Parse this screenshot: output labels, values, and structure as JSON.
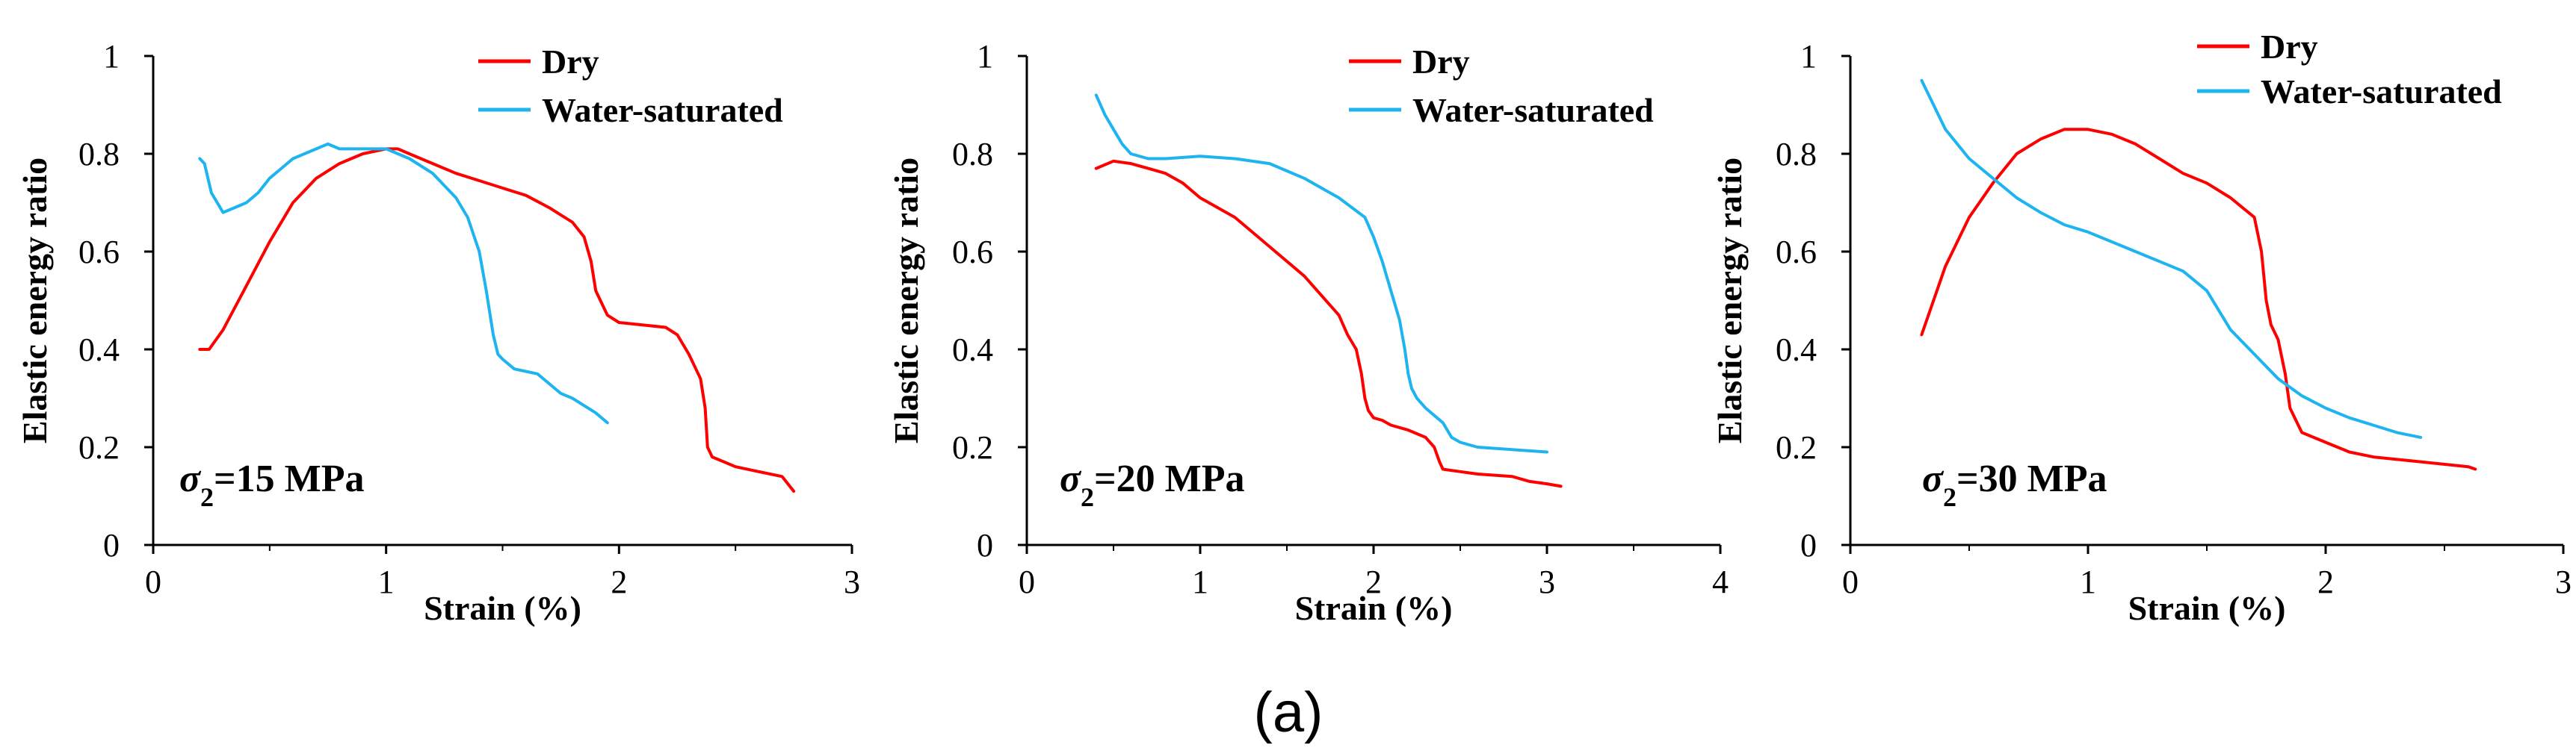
{
  "caption": "(a)",
  "colors": {
    "dry": "#ff0000",
    "water_saturated": "#1eb4f0"
  },
  "chart_data": [
    {
      "type": "line",
      "annotation": {
        "symbol": "σ",
        "subscript": "2",
        "text": "=15 MPa"
      },
      "xlabel": "Strain (%)",
      "ylabel": "Elastic energy ratio",
      "xlim": [
        0,
        3
      ],
      "ylim": [
        0,
        1
      ],
      "xticks": [
        "0",
        "1",
        "2",
        "3"
      ],
      "yticks": [
        "0",
        "0.2",
        "0.4",
        "0.6",
        "0.8",
        "1"
      ],
      "legend_position": "top-center",
      "series": [
        {
          "name": "Dry",
          "color": "#ff0000",
          "x": [
            0.2,
            0.24,
            0.3,
            0.4,
            0.5,
            0.6,
            0.7,
            0.8,
            0.9,
            1.0,
            1.05,
            1.1,
            1.2,
            1.3,
            1.4,
            1.5,
            1.6,
            1.7,
            1.75,
            1.8,
            1.85,
            1.88,
            1.9,
            1.92,
            1.95,
            2.0,
            2.1,
            2.2,
            2.25,
            2.3,
            2.35,
            2.37,
            2.38,
            2.4,
            2.45,
            2.5,
            2.6,
            2.7,
            2.75
          ],
          "y": [
            0.4,
            0.4,
            0.44,
            0.53,
            0.62,
            0.7,
            0.75,
            0.78,
            0.8,
            0.81,
            0.81,
            0.8,
            0.78,
            0.76,
            0.745,
            0.73,
            0.715,
            0.69,
            0.675,
            0.66,
            0.63,
            0.58,
            0.52,
            0.5,
            0.47,
            0.455,
            0.45,
            0.445,
            0.43,
            0.39,
            0.34,
            0.28,
            0.2,
            0.18,
            0.17,
            0.16,
            0.15,
            0.14,
            0.11
          ]
        },
        {
          "name": "Water-saturated",
          "color": "#1eb4f0",
          "x": [
            0.2,
            0.22,
            0.25,
            0.3,
            0.35,
            0.4,
            0.45,
            0.5,
            0.6,
            0.7,
            0.75,
            0.8,
            0.9,
            1.0,
            1.1,
            1.2,
            1.3,
            1.35,
            1.4,
            1.43,
            1.46,
            1.48,
            1.5,
            1.55,
            1.6,
            1.65,
            1.7,
            1.75,
            1.8,
            1.9,
            1.95
          ],
          "y": [
            0.79,
            0.78,
            0.72,
            0.68,
            0.69,
            0.7,
            0.72,
            0.75,
            0.79,
            0.81,
            0.82,
            0.81,
            0.81,
            0.81,
            0.79,
            0.76,
            0.71,
            0.67,
            0.6,
            0.52,
            0.43,
            0.39,
            0.38,
            0.36,
            0.355,
            0.35,
            0.33,
            0.31,
            0.3,
            0.27,
            0.25
          ]
        }
      ]
    },
    {
      "type": "line",
      "annotation": {
        "symbol": "σ",
        "subscript": "2",
        "text": "=20 MPa"
      },
      "xlabel": "Strain (%)",
      "ylabel": "Elastic energy ratio",
      "xlim": [
        0,
        4
      ],
      "ylim": [
        0,
        1
      ],
      "xticks": [
        "0",
        "1",
        "2",
        "3",
        "4"
      ],
      "yticks": [
        "0",
        "0.2",
        "0.4",
        "0.6",
        "0.8",
        "1"
      ],
      "legend_position": "top-center",
      "series": [
        {
          "name": "Dry",
          "color": "#ff0000",
          "x": [
            0.4,
            0.5,
            0.6,
            0.7,
            0.8,
            0.9,
            1.0,
            1.2,
            1.4,
            1.6,
            1.7,
            1.8,
            1.85,
            1.9,
            1.93,
            1.95,
            1.97,
            2.0,
            2.05,
            2.1,
            2.2,
            2.3,
            2.35,
            2.38,
            2.4,
            2.5,
            2.6,
            2.8,
            2.9,
            3.0,
            3.08
          ],
          "y": [
            0.77,
            0.785,
            0.78,
            0.77,
            0.76,
            0.74,
            0.71,
            0.67,
            0.61,
            0.55,
            0.51,
            0.47,
            0.43,
            0.4,
            0.35,
            0.3,
            0.275,
            0.26,
            0.255,
            0.245,
            0.235,
            0.22,
            0.2,
            0.17,
            0.155,
            0.15,
            0.145,
            0.14,
            0.13,
            0.125,
            0.12
          ]
        },
        {
          "name": "Water-saturated",
          "color": "#1eb4f0",
          "x": [
            0.4,
            0.45,
            0.5,
            0.55,
            0.6,
            0.7,
            0.8,
            1.0,
            1.2,
            1.4,
            1.6,
            1.8,
            1.95,
            2.0,
            2.05,
            2.1,
            2.15,
            2.18,
            2.2,
            2.22,
            2.25,
            2.3,
            2.4,
            2.45,
            2.5,
            2.6,
            2.8,
            3.0
          ],
          "y": [
            0.92,
            0.88,
            0.85,
            0.82,
            0.8,
            0.79,
            0.79,
            0.795,
            0.79,
            0.78,
            0.75,
            0.71,
            0.67,
            0.63,
            0.58,
            0.52,
            0.46,
            0.4,
            0.35,
            0.32,
            0.3,
            0.28,
            0.25,
            0.22,
            0.21,
            0.2,
            0.195,
            0.19
          ]
        }
      ]
    },
    {
      "type": "line",
      "annotation": {
        "symbol": "σ",
        "subscript": "2",
        "text": "=30 MPa"
      },
      "xlabel": "Strain (%)",
      "ylabel": "Elastic energy ratio",
      "xlim": [
        0,
        3
      ],
      "ylim": [
        0,
        1
      ],
      "xticks": [
        "0",
        "1",
        "2",
        "3"
      ],
      "yticks": [
        "0",
        "0.2",
        "0.4",
        "0.6",
        "0.8",
        "1"
      ],
      "legend_position": "top-center",
      "series": [
        {
          "name": "Dry",
          "color": "#ff0000",
          "x": [
            0.3,
            0.35,
            0.4,
            0.5,
            0.6,
            0.7,
            0.8,
            0.9,
            1.0,
            1.1,
            1.2,
            1.3,
            1.4,
            1.5,
            1.6,
            1.65,
            1.7,
            1.73,
            1.75,
            1.77,
            1.8,
            1.83,
            1.85,
            1.88,
            1.9,
            2.0,
            2.1,
            2.2,
            2.4,
            2.6,
            2.63
          ],
          "y": [
            0.43,
            0.5,
            0.57,
            0.67,
            0.74,
            0.8,
            0.83,
            0.85,
            0.85,
            0.84,
            0.82,
            0.79,
            0.76,
            0.74,
            0.71,
            0.69,
            0.67,
            0.6,
            0.5,
            0.45,
            0.42,
            0.35,
            0.28,
            0.25,
            0.23,
            0.21,
            0.19,
            0.18,
            0.17,
            0.16,
            0.155
          ]
        },
        {
          "name": "Water-saturated",
          "color": "#1eb4f0",
          "x": [
            0.3,
            0.35,
            0.4,
            0.5,
            0.6,
            0.7,
            0.8,
            0.9,
            1.0,
            1.2,
            1.4,
            1.5,
            1.6,
            1.7,
            1.8,
            1.9,
            2.0,
            2.1,
            2.2,
            2.3,
            2.4
          ],
          "y": [
            0.95,
            0.9,
            0.85,
            0.79,
            0.75,
            0.71,
            0.68,
            0.655,
            0.64,
            0.6,
            0.56,
            0.52,
            0.44,
            0.39,
            0.34,
            0.305,
            0.28,
            0.26,
            0.245,
            0.23,
            0.22
          ]
        }
      ]
    }
  ]
}
